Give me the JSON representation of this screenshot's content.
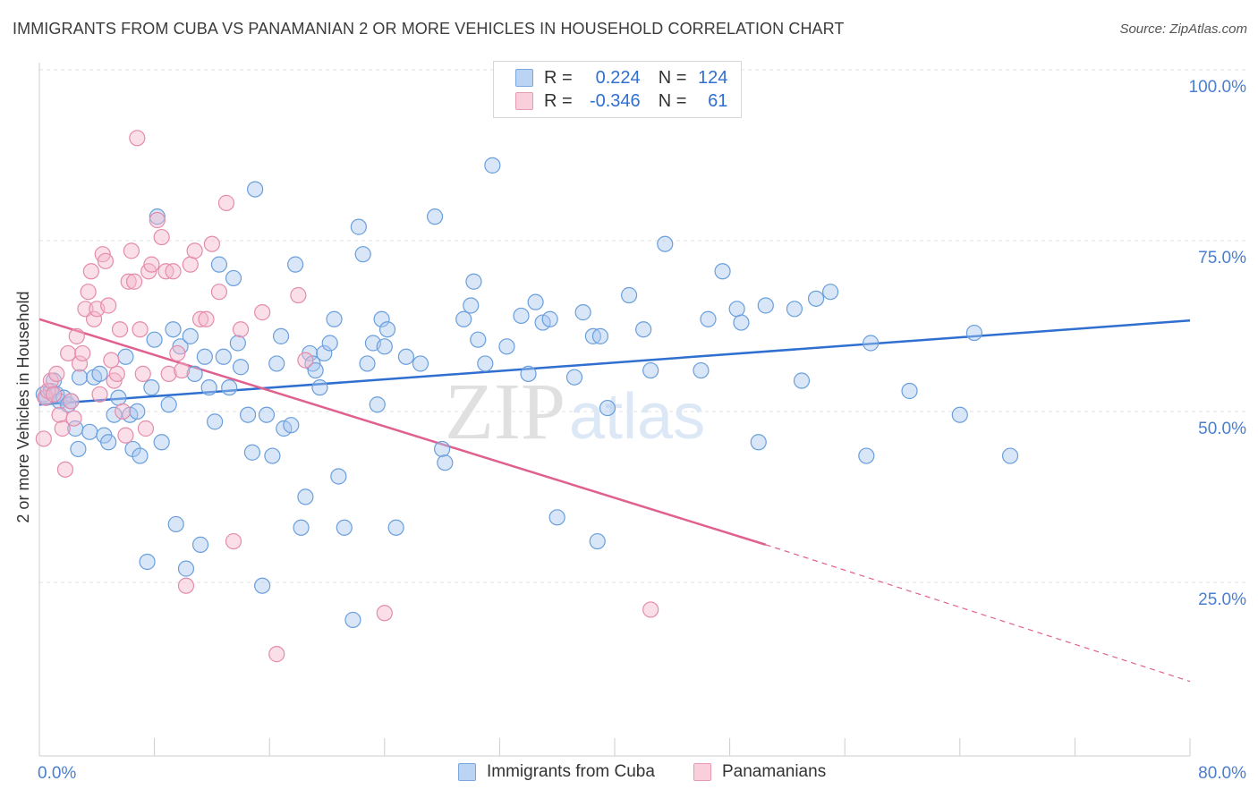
{
  "title": "IMMIGRANTS FROM CUBA VS PANAMANIAN 2 OR MORE VEHICLES IN HOUSEHOLD CORRELATION CHART",
  "source": "Source: ZipAtlas.com",
  "watermark": {
    "zip": "ZIP",
    "atlas": "atlas"
  },
  "legend": {
    "r_label": "R =",
    "n_label": "N =",
    "rows": [
      {
        "r": "0.224",
        "n": "124",
        "color": "#a8c8f0"
      },
      {
        "r": "-0.346",
        "n": "61",
        "color": "#f5b8cc"
      }
    ]
  },
  "bottom_legend": [
    "Immigrants from Cuba",
    "Panamanians"
  ],
  "colors": {
    "blue": "#5b9bd5",
    "blue_line": "#2f6fd0",
    "pink": "#e77fa6",
    "pink_line": "#e0608f",
    "axis_text": "#4a7fd0"
  },
  "chart_data": {
    "type": "scatter",
    "title": "IMMIGRANTS FROM CUBA VS PANAMANIAN 2 OR MORE VEHICLES IN HOUSEHOLD CORRELATION CHART",
    "xlabel": "",
    "ylabel": "2 or more Vehicles in Household",
    "xlim": [
      0,
      80
    ],
    "ylim": [
      0,
      102
    ],
    "x_tick_labels": [
      "0.0%",
      "80.0%"
    ],
    "y_ticks": [
      25,
      50,
      75,
      100
    ],
    "y_tick_labels": [
      "25.0%",
      "50.0%",
      "75.0%",
      "100.0%"
    ],
    "grid": true,
    "legend_position": "top-center",
    "series": [
      {
        "name": "Immigrants from Cuba",
        "r": 0.224,
        "n": 124,
        "trend": {
          "x0": 0,
          "y0": 53.5,
          "x1": 80,
          "y1": 65.8
        },
        "points": [
          [
            0.3,
            55
          ],
          [
            0.5,
            54.5
          ],
          [
            0.8,
            55.5
          ],
          [
            1.0,
            57
          ],
          [
            1.2,
            55
          ],
          [
            1.4,
            54
          ],
          [
            1.7,
            54.5
          ],
          [
            2.0,
            53.5
          ],
          [
            2.2,
            54
          ],
          [
            2.5,
            50
          ],
          [
            2.7,
            47
          ],
          [
            2.8,
            57.5
          ],
          [
            3.5,
            49.5
          ],
          [
            3.8,
            57.5
          ],
          [
            4.2,
            58
          ],
          [
            4.5,
            49
          ],
          [
            4.8,
            48
          ],
          [
            5.2,
            52
          ],
          [
            5.5,
            54.5
          ],
          [
            6.0,
            60.5
          ],
          [
            6.3,
            52
          ],
          [
            6.5,
            47
          ],
          [
            6.8,
            52.5
          ],
          [
            7.0,
            46
          ],
          [
            7.5,
            30.5
          ],
          [
            7.8,
            56
          ],
          [
            8.0,
            63
          ],
          [
            8.2,
            81
          ],
          [
            8.5,
            48
          ],
          [
            9.0,
            53.5
          ],
          [
            9.3,
            64.5
          ],
          [
            9.5,
            36
          ],
          [
            9.8,
            62
          ],
          [
            10.2,
            29.5
          ],
          [
            10.5,
            63.5
          ],
          [
            10.8,
            58
          ],
          [
            11.2,
            33
          ],
          [
            11.5,
            60.5
          ],
          [
            11.8,
            56
          ],
          [
            12.2,
            51
          ],
          [
            12.5,
            74
          ],
          [
            12.8,
            60.5
          ],
          [
            13.2,
            56
          ],
          [
            13.5,
            72
          ],
          [
            13.8,
            62.5
          ],
          [
            14.0,
            59
          ],
          [
            14.5,
            52
          ],
          [
            14.8,
            46.5
          ],
          [
            15.0,
            85
          ],
          [
            15.5,
            27
          ],
          [
            15.8,
            52
          ],
          [
            16.2,
            46
          ],
          [
            16.5,
            59.5
          ],
          [
            16.8,
            63.5
          ],
          [
            17.0,
            50
          ],
          [
            17.5,
            50.5
          ],
          [
            17.8,
            74
          ],
          [
            18.2,
            35.5
          ],
          [
            18.5,
            40
          ],
          [
            18.8,
            61
          ],
          [
            19.0,
            59.5
          ],
          [
            19.2,
            58.5
          ],
          [
            19.5,
            56
          ],
          [
            19.8,
            61
          ],
          [
            20.2,
            62.5
          ],
          [
            20.5,
            66
          ],
          [
            20.8,
            43
          ],
          [
            21.2,
            35.5
          ],
          [
            21.8,
            22
          ],
          [
            22.2,
            79.5
          ],
          [
            22.5,
            75.5
          ],
          [
            22.8,
            59.5
          ],
          [
            23.2,
            62.5
          ],
          [
            23.5,
            53.5
          ],
          [
            23.8,
            66
          ],
          [
            24.0,
            62
          ],
          [
            24.2,
            64.5
          ],
          [
            24.8,
            35.5
          ],
          [
            25.5,
            60.5
          ],
          [
            26.5,
            59.5
          ],
          [
            27.5,
            81
          ],
          [
            28.0,
            47
          ],
          [
            28.2,
            45
          ],
          [
            29.5,
            66
          ],
          [
            30.0,
            68
          ],
          [
            30.2,
            71.5
          ],
          [
            30.5,
            63
          ],
          [
            31.0,
            59.5
          ],
          [
            31.5,
            88.5
          ],
          [
            32.5,
            62
          ],
          [
            33.5,
            66.5
          ],
          [
            34.0,
            58
          ],
          [
            34.5,
            68.5
          ],
          [
            35.0,
            65.5
          ],
          [
            35.5,
            66
          ],
          [
            36.0,
            37
          ],
          [
            37.2,
            57.5
          ],
          [
            37.8,
            67
          ],
          [
            38.5,
            63.5
          ],
          [
            38.8,
            33.5
          ],
          [
            39.0,
            63.5
          ],
          [
            39.5,
            53
          ],
          [
            41.0,
            69.5
          ],
          [
            42.0,
            64.5
          ],
          [
            42.5,
            58.5
          ],
          [
            43.5,
            77
          ],
          [
            46.0,
            58.5
          ],
          [
            46.5,
            66
          ],
          [
            47.5,
            73
          ],
          [
            48.5,
            67.5
          ],
          [
            48.8,
            65.5
          ],
          [
            50.0,
            48
          ],
          [
            50.5,
            68
          ],
          [
            52.5,
            67.5
          ],
          [
            53.0,
            57
          ],
          [
            54.0,
            69
          ],
          [
            55.0,
            70
          ],
          [
            57.5,
            46
          ],
          [
            57.8,
            62.5
          ],
          [
            60.5,
            55.5
          ],
          [
            64.0,
            52
          ],
          [
            65.0,
            64
          ],
          [
            67.5,
            46
          ]
        ]
      },
      {
        "name": "Panamanians",
        "r": -0.346,
        "n": 61,
        "trend": {
          "x0": 0,
          "y0": 66,
          "x1": 50.5,
          "y1": 33,
          "dash_x1": 80,
          "dash_y1": 13
        },
        "points": [
          [
            0.3,
            48.5
          ],
          [
            0.4,
            54.5
          ],
          [
            0.6,
            55.5
          ],
          [
            0.8,
            57
          ],
          [
            1.0,
            55
          ],
          [
            1.2,
            58
          ],
          [
            1.4,
            52
          ],
          [
            1.6,
            50
          ],
          [
            1.8,
            44
          ],
          [
            2.0,
            61
          ],
          [
            2.2,
            54
          ],
          [
            2.4,
            51.5
          ],
          [
            2.6,
            63.5
          ],
          [
            2.8,
            59.5
          ],
          [
            3.0,
            61
          ],
          [
            3.2,
            67.5
          ],
          [
            3.4,
            70
          ],
          [
            3.6,
            73
          ],
          [
            3.8,
            66
          ],
          [
            4.0,
            67.5
          ],
          [
            4.2,
            55
          ],
          [
            4.4,
            75.5
          ],
          [
            4.6,
            74.5
          ],
          [
            4.8,
            68
          ],
          [
            5.0,
            60
          ],
          [
            5.2,
            57
          ],
          [
            5.4,
            58
          ],
          [
            5.6,
            64.5
          ],
          [
            5.8,
            52.5
          ],
          [
            6.0,
            49
          ],
          [
            6.2,
            71.5
          ],
          [
            6.4,
            76
          ],
          [
            6.6,
            71.5
          ],
          [
            6.8,
            92.5
          ],
          [
            7.0,
            64.5
          ],
          [
            7.2,
            58
          ],
          [
            7.4,
            50
          ],
          [
            7.6,
            73
          ],
          [
            7.8,
            74
          ],
          [
            8.2,
            80.5
          ],
          [
            8.5,
            78
          ],
          [
            8.8,
            73
          ],
          [
            9.0,
            58
          ],
          [
            9.3,
            73
          ],
          [
            9.6,
            61
          ],
          [
            9.9,
            58.5
          ],
          [
            10.2,
            27
          ],
          [
            10.5,
            74
          ],
          [
            10.8,
            76
          ],
          [
            11.2,
            66
          ],
          [
            11.6,
            66
          ],
          [
            12.0,
            77
          ],
          [
            12.5,
            70
          ],
          [
            13.0,
            83
          ],
          [
            13.5,
            33.5
          ],
          [
            14.0,
            64.5
          ],
          [
            15.5,
            67
          ],
          [
            16.5,
            17
          ],
          [
            18.0,
            69.5
          ],
          [
            18.5,
            60
          ],
          [
            24.0,
            23
          ],
          [
            42.5,
            23.5
          ]
        ]
      }
    ]
  }
}
